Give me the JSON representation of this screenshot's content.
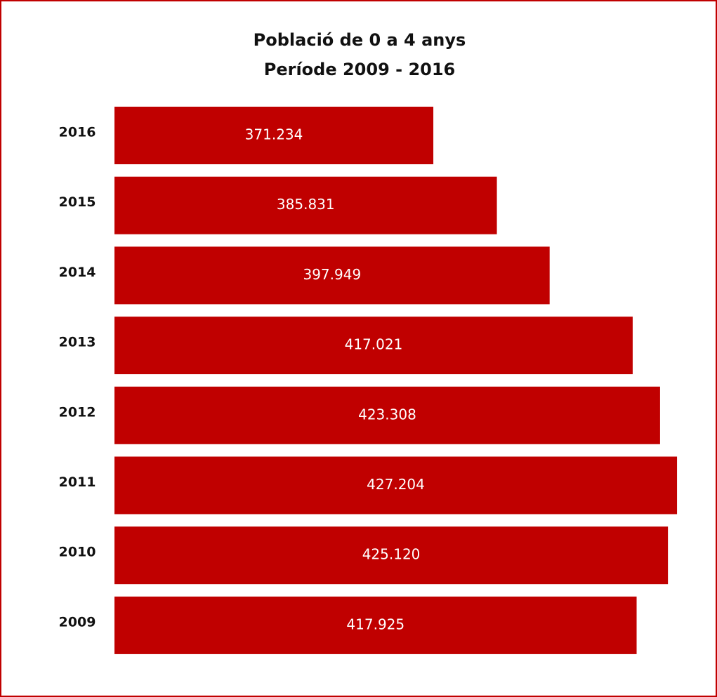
{
  "chart_data": {
    "type": "barh",
    "title": "Població de 0 a 4 anys",
    "subtitle": "Període 2009 - 2016",
    "categories": [
      "2016",
      "2015",
      "2014",
      "2013",
      "2012",
      "2011",
      "2010",
      "2009"
    ],
    "values": [
      371234,
      385831,
      397949,
      417021,
      423308,
      427204,
      425120,
      417925
    ],
    "value_labels": [
      "371.234",
      "385.831",
      "397.949",
      "417.021",
      "423.308",
      "427.204",
      "425.120",
      "417.925"
    ],
    "color": "#c00000",
    "xlim": [
      298000,
      433000
    ]
  }
}
